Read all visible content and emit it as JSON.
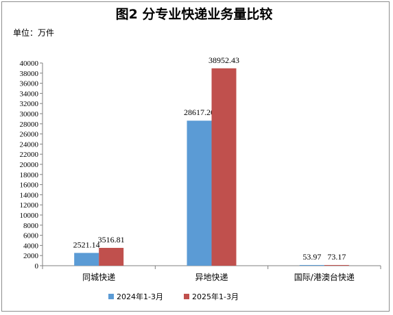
{
  "chart_data": {
    "type": "bar",
    "title": "图2 分专业快递业务量比较",
    "unit_label": "单位：万件",
    "categories": [
      "同城快递",
      "异地快递",
      "国际/港澳台快递"
    ],
    "series": [
      {
        "name": "2024年1-3月",
        "color": "#5b9bd5",
        "values": [
          2521.14,
          28617.2,
          53.97
        ]
      },
      {
        "name": "2025年1-3月",
        "color": "#c0504d",
        "values": [
          3516.81,
          38952.43,
          73.17
        ]
      }
    ],
    "data_labels": [
      [
        "2521.14",
        "28617.20",
        "53.97"
      ],
      [
        "3516.81",
        "38952.43",
        "73.17"
      ]
    ],
    "ylim": [
      0,
      40000
    ],
    "ytick_step": 2000,
    "grid": false,
    "legend_position": "bottom"
  }
}
